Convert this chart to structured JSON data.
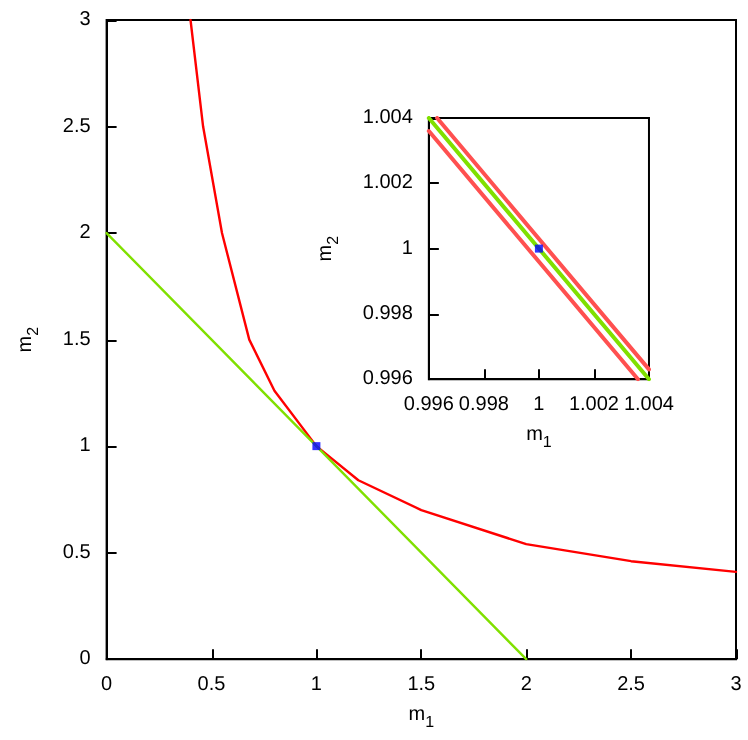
{
  "chart_data": [
    {
      "type": "line",
      "xlabel": "m$_{1}$",
      "ylabel": "m$_{2}$",
      "xlim": [
        0,
        3
      ],
      "ylim": [
        0,
        3
      ],
      "xticks": [
        0,
        0.5,
        1,
        1.5,
        2,
        2.5,
        3
      ],
      "yticks": [
        0,
        0.5,
        1,
        1.5,
        2,
        2.5,
        3
      ],
      "grid": false,
      "marker": "none",
      "series": [
        {
          "color": "#ff0000",
          "x": [
            0.4,
            0.46,
            0.55,
            0.68,
            0.8,
            1,
            1.2,
            1.5,
            2,
            2.5,
            3
          ],
          "values": [
            3,
            2.5,
            2,
            1.5,
            1.26,
            1,
            0.84,
            0.7,
            0.54,
            0.46,
            0.41
          ]
        },
        {
          "color": "#80e000",
          "x": [
            0,
            2
          ],
          "values": [
            2,
            0
          ]
        },
        {
          "type": "scatter",
          "marker": "square",
          "color": "#0000ff",
          "x": [
            1
          ],
          "values": [
            1
          ]
        }
      ]
    },
    {
      "type": "line",
      "xlabel": "m$_{1}$",
      "ylabel": "m$_{2}$",
      "xlim": [
        0.996,
        1.004
      ],
      "ylim": [
        0.996,
        1.004
      ],
      "xticks": [
        0.996,
        0.998,
        1,
        1.002,
        1.004
      ],
      "yticks": [
        0.996,
        0.998,
        1,
        1.002,
        1.004
      ],
      "grid": false,
      "marker": "none",
      "series": [
        {
          "color": "#ff5050",
          "x": [
            0.9963,
            1.004
          ],
          "values": [
            1.004,
            0.9963
          ]
        },
        {
          "color": "#ff5050",
          "x": [
            0.996,
            1.0036
          ],
          "values": [
            1.0036,
            0.996
          ]
        },
        {
          "color": "#80e000",
          "x": [
            0.996,
            1.004
          ],
          "values": [
            1.004,
            0.996
          ]
        },
        {
          "type": "scatter",
          "marker": "square",
          "color": "#0000ff",
          "x": [
            1
          ],
          "values": [
            1
          ]
        }
      ]
    }
  ]
}
